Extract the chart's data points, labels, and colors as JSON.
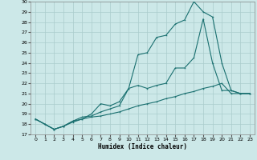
{
  "xlabel": "Humidex (Indice chaleur)",
  "xlim": [
    -0.5,
    23.5
  ],
  "ylim": [
    17,
    30
  ],
  "yticks": [
    17,
    18,
    19,
    20,
    21,
    22,
    23,
    24,
    25,
    26,
    27,
    28,
    29,
    30
  ],
  "xticks": [
    0,
    1,
    2,
    3,
    4,
    5,
    6,
    7,
    8,
    9,
    10,
    11,
    12,
    13,
    14,
    15,
    16,
    17,
    18,
    19,
    20,
    21,
    22,
    23
  ],
  "background_color": "#cce8e8",
  "grid_color": "#aacccc",
  "line_color": "#1a7070",
  "line1_x": [
    0,
    1,
    2,
    3,
    4,
    5,
    6,
    7,
    8,
    9,
    10,
    11,
    12,
    13,
    14,
    15,
    16,
    17,
    18,
    19,
    20,
    21,
    22,
    23
  ],
  "line1_y": [
    18.5,
    18.0,
    17.5,
    17.8,
    18.2,
    18.5,
    18.7,
    18.8,
    19.0,
    19.2,
    19.5,
    19.8,
    20.0,
    20.2,
    20.5,
    20.7,
    21.0,
    21.2,
    21.5,
    21.7,
    22.0,
    21.0,
    21.0,
    21.0
  ],
  "line2_x": [
    0,
    1,
    2,
    3,
    4,
    5,
    6,
    7,
    8,
    9,
    10,
    11,
    12,
    13,
    14,
    15,
    16,
    17,
    18,
    19,
    20,
    21,
    22,
    23
  ],
  "line2_y": [
    18.5,
    18.0,
    17.5,
    17.8,
    18.3,
    18.7,
    18.8,
    19.2,
    19.5,
    19.8,
    21.5,
    24.8,
    25.0,
    26.5,
    26.7,
    27.8,
    28.2,
    30.0,
    29.0,
    28.5,
    24.0,
    21.3,
    21.0,
    21.0
  ],
  "line3_x": [
    0,
    1,
    2,
    3,
    4,
    5,
    6,
    7,
    8,
    9,
    10,
    11,
    12,
    13,
    14,
    15,
    16,
    17,
    18,
    19,
    20,
    21,
    22,
    23
  ],
  "line3_y": [
    18.5,
    18.0,
    17.5,
    17.8,
    18.3,
    18.5,
    19.0,
    20.0,
    19.8,
    20.2,
    21.5,
    21.8,
    21.5,
    21.8,
    22.0,
    23.5,
    23.5,
    24.5,
    28.3,
    24.0,
    21.3,
    21.3,
    21.0,
    21.0
  ]
}
